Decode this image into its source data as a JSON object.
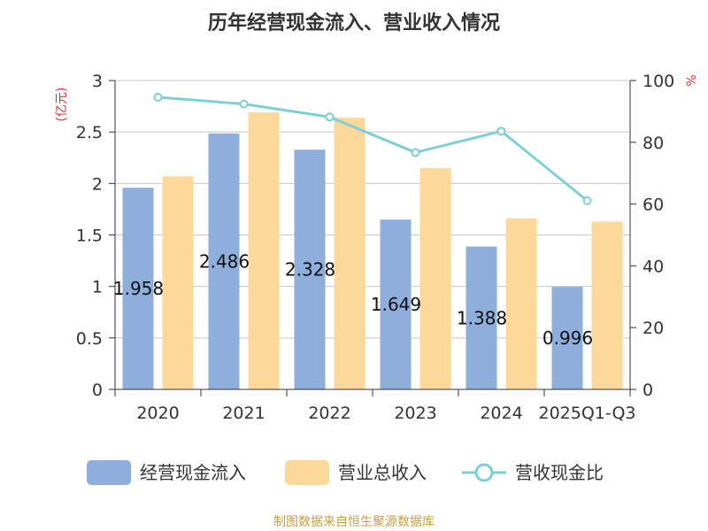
{
  "chart_data": {
    "type": "bar",
    "title": "历年经营现金流入、营业收入情况",
    "categories": [
      "2020",
      "2021",
      "2022",
      "2023",
      "2024",
      "2025Q1-Q3"
    ],
    "series": [
      {
        "name": "经营现金流入",
        "type": "bar",
        "axis": "left",
        "color": "#8eaedb",
        "values": [
          1.958,
          2.486,
          2.328,
          1.649,
          1.388,
          0.996
        ]
      },
      {
        "name": "营业总收入",
        "type": "bar",
        "axis": "left",
        "color": "#fdd89b",
        "values": [
          2.07,
          2.69,
          2.64,
          2.15,
          1.66,
          1.63
        ]
      },
      {
        "name": "营收现金比",
        "type": "line",
        "axis": "right",
        "color": "#7ecfd4",
        "values": [
          94.6,
          92.4,
          88.2,
          76.7,
          83.6,
          61.1
        ]
      }
    ],
    "data_labels": [
      "1.958",
      "2.486",
      "2.328",
      "1.649",
      "1.388",
      "0.996"
    ],
    "y_left": {
      "unit": "(亿元)",
      "ylim": [
        0,
        3
      ],
      "ticks": [
        "0",
        "0.5",
        "1",
        "1.5",
        "2",
        "2.5",
        "3"
      ]
    },
    "y_right": {
      "unit": "%",
      "ylim": [
        0,
        100
      ],
      "ticks": [
        "0",
        "20",
        "40",
        "60",
        "80",
        "100"
      ]
    },
    "grid": true,
    "legend_position": "bottom"
  },
  "footer": "制图数据来自恒生聚源数据库"
}
